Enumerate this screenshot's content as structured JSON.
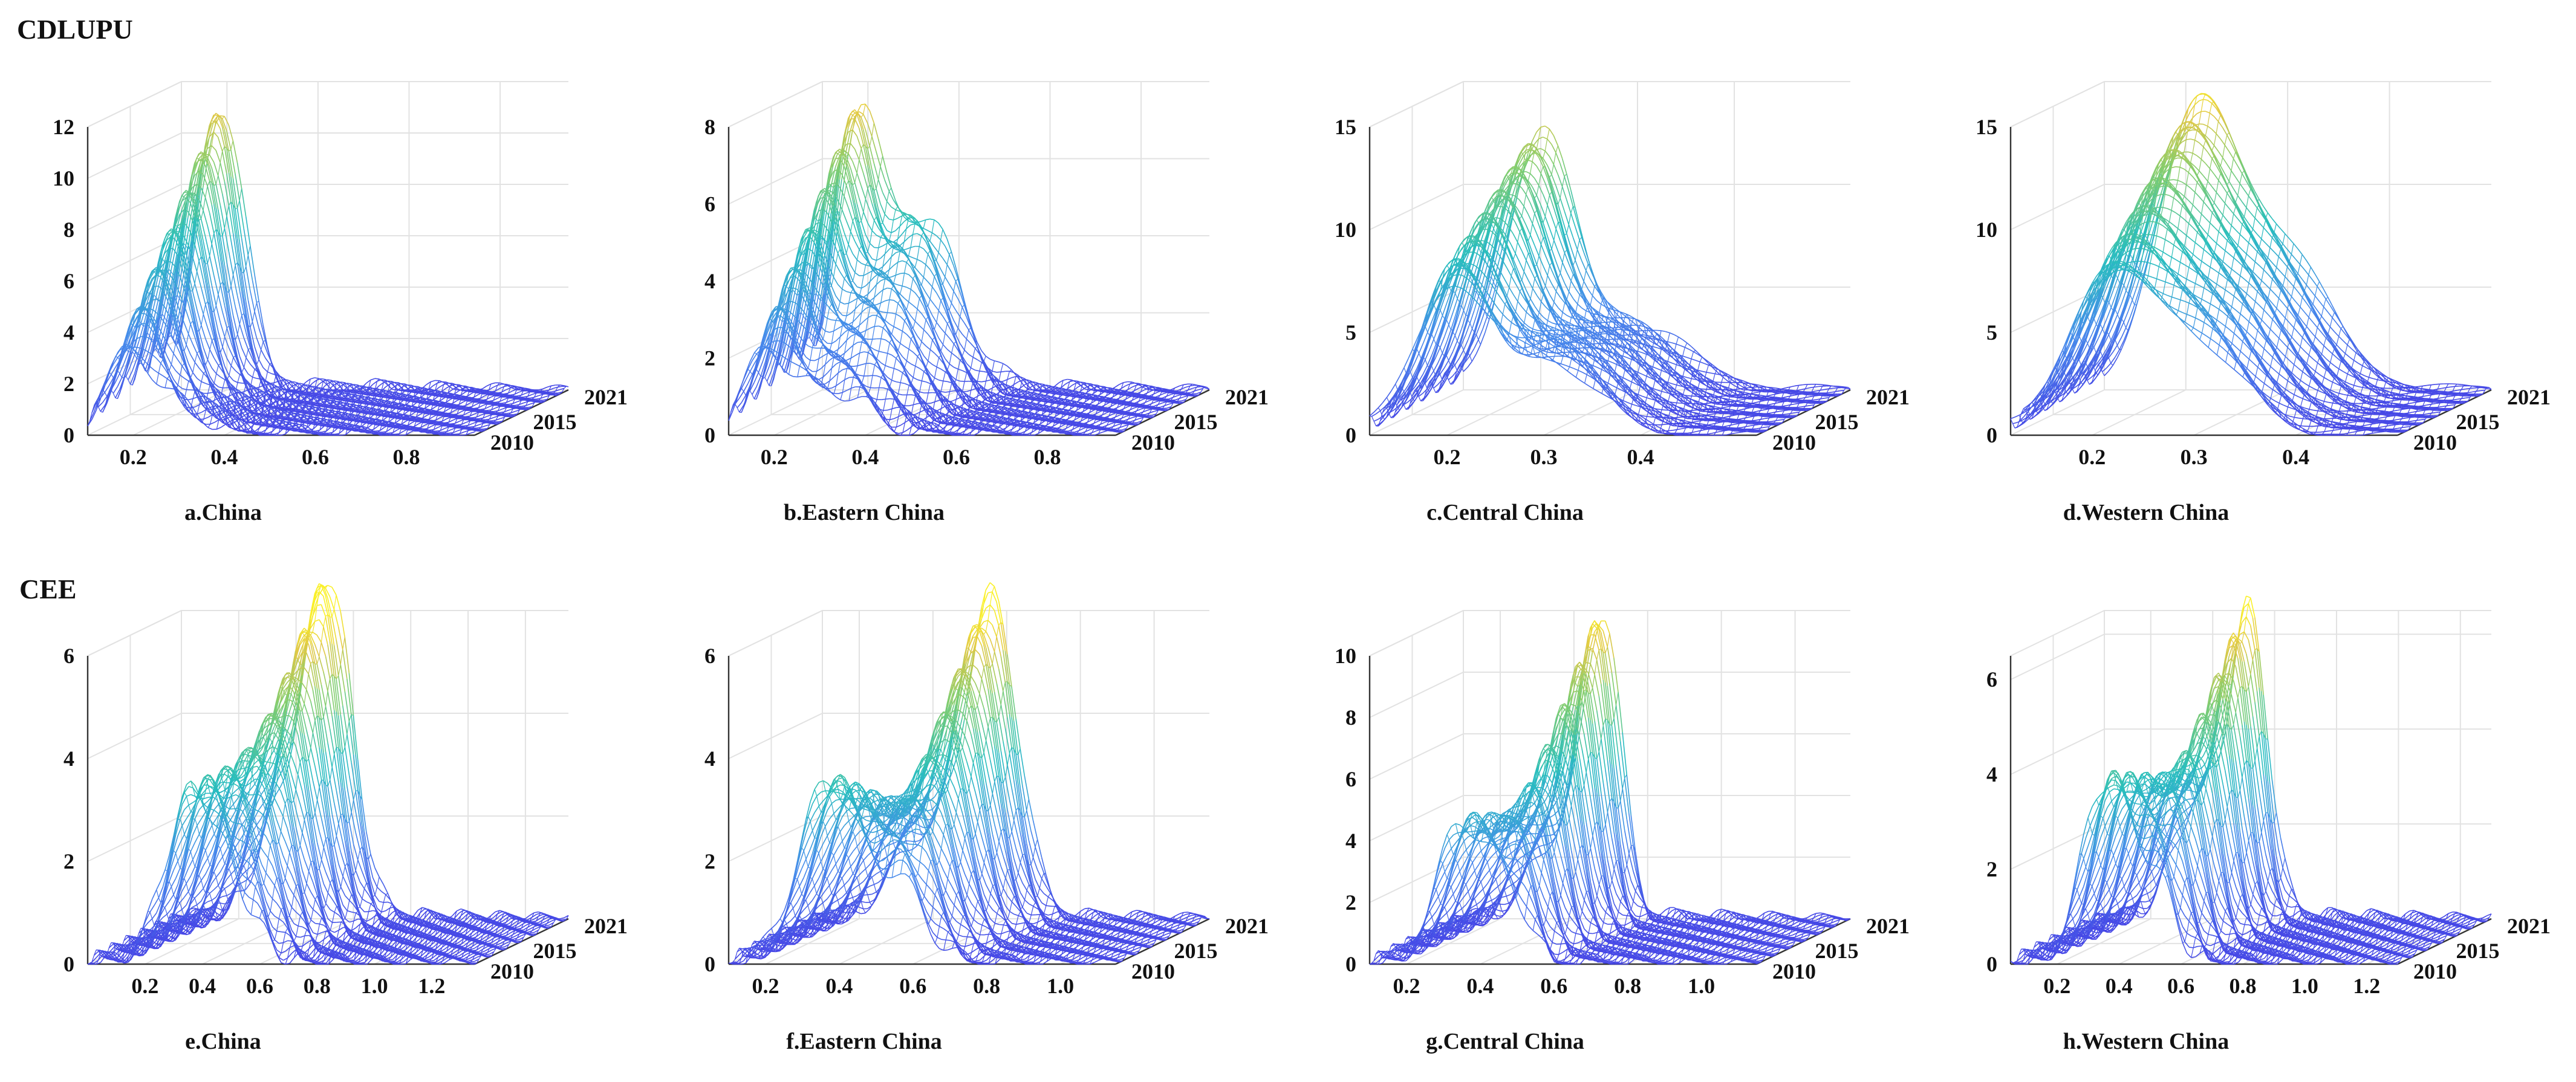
{
  "sections": [
    {
      "label": "CDLUPU"
    },
    {
      "label": "CEE"
    }
  ],
  "chart_data": [
    {
      "type": "surface",
      "caption": "a.China",
      "x_ticks": [
        "0.2",
        "0.4",
        "0.6",
        "0.8"
      ],
      "x_tick_values": [
        0.2,
        0.4,
        0.6,
        0.8
      ],
      "xlim": [
        0.1,
        0.95
      ],
      "z_ticks": [
        "0",
        "2",
        "4",
        "6",
        "8",
        "10",
        "12"
      ],
      "z_tick_values": [
        0,
        2,
        4,
        6,
        8,
        10,
        12
      ],
      "zlim": [
        0,
        12
      ],
      "year_ticks": [
        "2010",
        "2015",
        "2021"
      ],
      "year_tick_values": [
        2010,
        2015,
        2021
      ],
      "ylim": [
        2010,
        2021
      ],
      "peaks": [
        {
          "center": 0.19,
          "width": 0.05,
          "height_start": 3.0,
          "height_end": 11.0
        },
        {
          "center": 0.3,
          "width": 0.07,
          "height_start": 1.0,
          "height_end": 0.0
        }
      ],
      "baseline": 0.05
    },
    {
      "type": "surface",
      "caption": "b.Eastern China",
      "x_ticks": [
        "0.2",
        "0.4",
        "0.6",
        "0.8"
      ],
      "x_tick_values": [
        0.2,
        0.4,
        0.6,
        0.8
      ],
      "xlim": [
        0.1,
        0.95
      ],
      "z_ticks": [
        "0",
        "2",
        "4",
        "6",
        "8"
      ],
      "z_tick_values": [
        0,
        2,
        4,
        6,
        8
      ],
      "zlim": [
        0,
        8
      ],
      "year_ticks": [
        "2010",
        "2015",
        "2021"
      ],
      "year_tick_values": [
        2010,
        2015,
        2021
      ],
      "ylim": [
        2010,
        2021
      ],
      "peaks": [
        {
          "center": 0.18,
          "width": 0.045,
          "height_start": 2.0,
          "height_end": 6.5
        },
        {
          "center": 0.32,
          "width": 0.08,
          "height_start": 1.2,
          "height_end": 4.5
        }
      ],
      "baseline": 0.05
    },
    {
      "type": "surface",
      "caption": "c.Central China",
      "x_ticks": [
        "0.2",
        "0.3",
        "0.4"
      ],
      "x_tick_values": [
        0.2,
        0.3,
        0.4
      ],
      "xlim": [
        0.12,
        0.52
      ],
      "z_ticks": [
        "0",
        "5",
        "10",
        "15"
      ],
      "z_tick_values": [
        0,
        5,
        10,
        15
      ],
      "zlim": [
        0,
        15
      ],
      "year_ticks": [
        "2010",
        "2015",
        "2021"
      ],
      "year_tick_values": [
        2010,
        2015,
        2021
      ],
      "ylim": [
        2010,
        2021
      ],
      "peaks": [
        {
          "center": 0.2,
          "width": 0.035,
          "height_start": 7.0,
          "height_end": 12.0
        },
        {
          "center": 0.3,
          "width": 0.05,
          "height_start": 4.0,
          "height_end": 3.0
        }
      ],
      "baseline": 0.05
    },
    {
      "type": "surface",
      "caption": "d.Western China",
      "x_ticks": [
        "0.2",
        "0.3",
        "0.4"
      ],
      "x_tick_values": [
        0.2,
        0.3,
        0.4
      ],
      "xlim": [
        0.12,
        0.5
      ],
      "z_ticks": [
        "0",
        "5",
        "10",
        "15"
      ],
      "z_tick_values": [
        0,
        5,
        10,
        15
      ],
      "zlim": [
        0,
        15
      ],
      "year_ticks": [
        "2010",
        "2015",
        "2021"
      ],
      "year_tick_values": [
        2010,
        2015,
        2021
      ],
      "ylim": [
        2010,
        2021
      ],
      "peaks": [
        {
          "center": 0.21,
          "width": 0.04,
          "height_start": 6.0,
          "height_end": 12.0
        },
        {
          "center": 0.29,
          "width": 0.05,
          "height_start": 5.0,
          "height_end": 6.5
        }
      ],
      "baseline": 0.05
    },
    {
      "type": "surface",
      "caption": "e.China",
      "x_ticks": [
        "0.2",
        "0.4",
        "0.6",
        "0.8",
        "1.0",
        "1.2"
      ],
      "x_tick_values": [
        0.2,
        0.4,
        0.6,
        0.8,
        1.0,
        1.2
      ],
      "xlim": [
        0.0,
        1.35
      ],
      "z_ticks": [
        "0",
        "2",
        "4",
        "6"
      ],
      "z_tick_values": [
        0,
        2,
        4,
        6
      ],
      "zlim": [
        0,
        6
      ],
      "year_ticks": [
        "2010",
        "2015",
        "2021"
      ],
      "year_tick_values": [
        2010,
        2015,
        2021
      ],
      "ylim": [
        2010,
        2021
      ],
      "peaks": [
        {
          "center": 0.36,
          "width": 0.09,
          "height_start": 3.2,
          "height_end": 2.0
        },
        {
          "center": 0.52,
          "width": 0.08,
          "height_start": 1.0,
          "height_end": 6.2
        }
      ],
      "baseline": 0.05
    },
    {
      "type": "surface",
      "caption": "f.Eastern China",
      "x_ticks": [
        "0.2",
        "0.4",
        "0.6",
        "0.8",
        "1.0"
      ],
      "x_tick_values": [
        0.2,
        0.4,
        0.6,
        0.8,
        1.0
      ],
      "xlim": [
        0.1,
        1.15
      ],
      "z_ticks": [
        "0",
        "2",
        "4",
        "6"
      ],
      "z_tick_values": [
        0,
        2,
        4,
        6
      ],
      "zlim": [
        0,
        6
      ],
      "year_ticks": [
        "2010",
        "2015",
        "2021"
      ],
      "year_tick_values": [
        2010,
        2015,
        2021
      ],
      "ylim": [
        2010,
        2021
      ],
      "peaks": [
        {
          "center": 0.37,
          "width": 0.08,
          "height_start": 3.5,
          "height_end": 1.5
        },
        {
          "center": 0.56,
          "width": 0.07,
          "height_start": 1.5,
          "height_end": 6.2
        }
      ],
      "baseline": 0.05
    },
    {
      "type": "surface",
      "caption": "g.Central China",
      "x_ticks": [
        "0.2",
        "0.4",
        "0.6",
        "0.8",
        "1.0"
      ],
      "x_tick_values": [
        0.2,
        0.4,
        0.6,
        0.8,
        1.0
      ],
      "xlim": [
        0.1,
        1.15
      ],
      "z_ticks": [
        "0",
        "2",
        "4",
        "6",
        "8",
        "10"
      ],
      "z_tick_values": [
        0,
        2,
        4,
        6,
        8,
        10
      ],
      "zlim": [
        0,
        10
      ],
      "year_ticks": [
        "2010",
        "2015",
        "2021"
      ],
      "year_tick_values": [
        2010,
        2015,
        2021
      ],
      "ylim": [
        2010,
        2021
      ],
      "peaks": [
        {
          "center": 0.35,
          "width": 0.07,
          "height_start": 4.5,
          "height_end": 2.5
        },
        {
          "center": 0.48,
          "width": 0.05,
          "height_start": 2.0,
          "height_end": 9.5
        }
      ],
      "baseline": 0.05
    },
    {
      "type": "surface",
      "caption": "h.Western China",
      "x_ticks": [
        "0.2",
        "0.4",
        "0.6",
        "0.8",
        "1.0",
        "1.2"
      ],
      "x_tick_values": [
        0.2,
        0.4,
        0.6,
        0.8,
        1.0,
        1.2
      ],
      "xlim": [
        0.05,
        1.3
      ],
      "z_ticks": [
        "0",
        "2",
        "4",
        "6"
      ],
      "z_tick_values": [
        0,
        2,
        4,
        6
      ],
      "zlim": [
        0,
        6.5
      ],
      "year_ticks": [
        "2010",
        "2015",
        "2021"
      ],
      "year_tick_values": [
        2010,
        2015,
        2021
      ],
      "ylim": [
        2010,
        2021
      ],
      "peaks": [
        {
          "center": 0.36,
          "width": 0.08,
          "height_start": 3.8,
          "height_end": 2.5
        },
        {
          "center": 0.52,
          "width": 0.06,
          "height_start": 1.5,
          "height_end": 6.2
        }
      ],
      "baseline": 0.05
    }
  ]
}
